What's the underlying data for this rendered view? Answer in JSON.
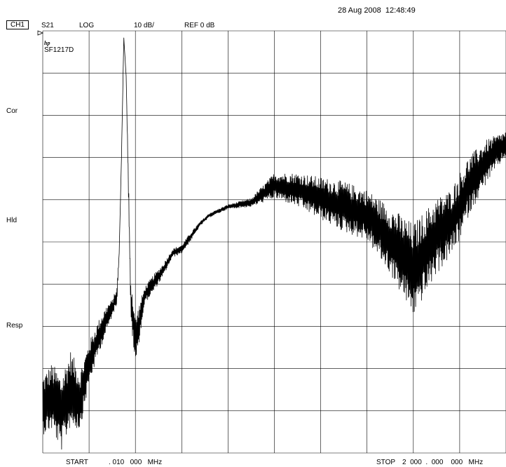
{
  "header": {
    "timestamp": "28 Aug 2008  12:48:49",
    "channel": "CH1",
    "measurement": "S21",
    "format": "LOG",
    "scale": "10 dB/",
    "reference": "REF 0 dB"
  },
  "instrument": {
    "logo_text": "hp",
    "model": "SF1217D"
  },
  "side_labels": {
    "cor": "Cor",
    "hld": "Hld",
    "resp": "Resp"
  },
  "footer": {
    "start_label": "START",
    "start_value": ". 010   000   MHz",
    "stop_label": "STOP",
    "stop_value": "2  000  .  000    000   MHz"
  },
  "colors": {
    "trace": "#000000",
    "grid": "#000000",
    "background": "#ffffff"
  },
  "chart_data": {
    "type": "line",
    "title": "",
    "xlabel": "",
    "ylabel": "",
    "x_start_mhz": 0.01,
    "x_stop_mhz": 2000,
    "x_scale": "linear",
    "y_scale_db_per_div": 10,
    "reference_db": 0,
    "grid": true,
    "divisions": {
      "x": 10,
      "y": 10
    },
    "series": [
      {
        "x_mhz": [
          0.01,
          40,
          80,
          120,
          160,
          200,
          240,
          280,
          300,
          320,
          330,
          340,
          350,
          360,
          380,
          400,
          440,
          480,
          520,
          560,
          600,
          640,
          680,
          720,
          760,
          800,
          900,
          1000,
          1100,
          1200,
          1300,
          1400,
          1500,
          1600,
          1700,
          1760,
          1800,
          1840,
          1880,
          1920,
          1960,
          2000
        ],
        "y_db": [
          -87,
          -85,
          -89,
          -83,
          -86,
          -77,
          -71,
          -66,
          -64,
          -61,
          -51,
          -28,
          0,
          -9,
          -62,
          -72,
          -61,
          -58,
          -55,
          -51,
          -50,
          -47,
          -44,
          -42,
          -41,
          -40,
          -39,
          -35,
          -36,
          -38,
          -40,
          -42,
          -48,
          -55,
          -47,
          -44,
          -40,
          -35,
          -32,
          -29,
          -27,
          -25
        ],
        "ripple_db": [
          7,
          8,
          9,
          9,
          7,
          5,
          4,
          3,
          2,
          2,
          0,
          0,
          0,
          0,
          5,
          6,
          2,
          2,
          1.5,
          1,
          1,
          1,
          0.5,
          0.5,
          0.5,
          0.5,
          1,
          3,
          4,
          5,
          6,
          6,
          8,
          11,
          9,
          8,
          8,
          7,
          6,
          5,
          4,
          3
        ]
      }
    ]
  }
}
